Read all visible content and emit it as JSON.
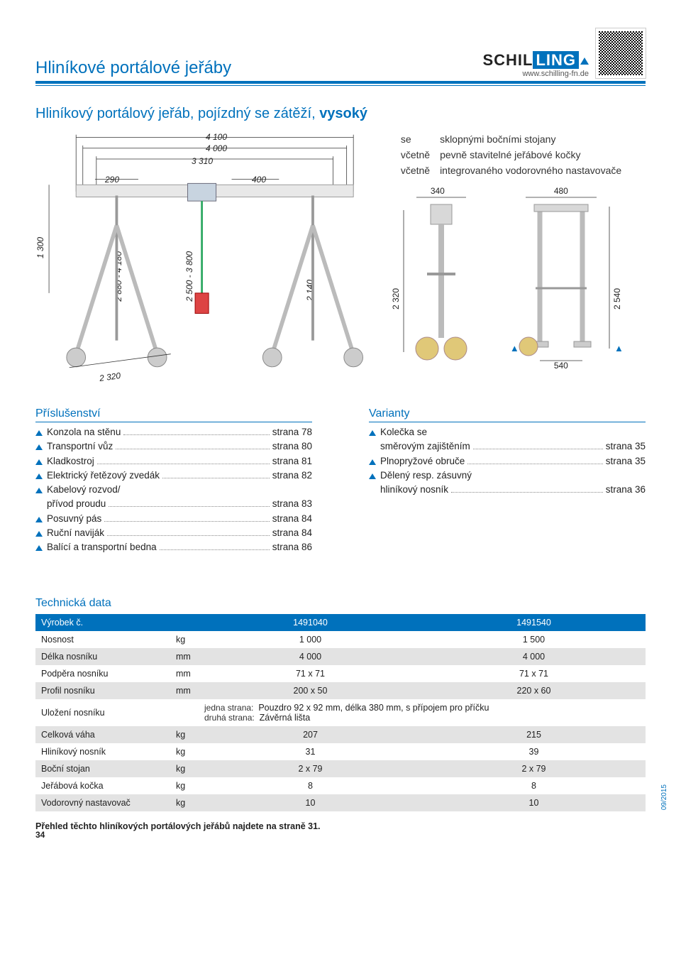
{
  "header": {
    "page_title": "Hliníkové portálové jeřáby",
    "logo_part1": "SCHIL",
    "logo_part2": "LING",
    "url": "www.schilling-fn.de"
  },
  "subtitle_plain": "Hliníkový portálový jeřáb, pojízdný se zátěží, ",
  "subtitle_bold": "vysoký",
  "features": [
    {
      "left": "se",
      "right": "sklopnými bočními stojany"
    },
    {
      "left": "včetně",
      "right": "pevně stavitelné jeřábové kočky"
    },
    {
      "left": "včetně",
      "right": "integrovaného vodorovného nastavovače"
    }
  ],
  "dimensions": {
    "top1": "4 100",
    "top2": "4 000",
    "top3": "3 310",
    "left_h": "1 300",
    "mast1": "2 880 - 4 180",
    "mast2": "2 500 - 3 800",
    "base_w": "290",
    "right_w": "400",
    "clear_h": "2 140",
    "base_diag": "2 320",
    "side_a_w": "340",
    "side_a_h": "2 320",
    "side_b_w": "480",
    "side_b_h": "2 540",
    "side_b_base": "540"
  },
  "accessories_title": "Příslušenství",
  "accessories": [
    {
      "label": "Konzola na stěnu",
      "page": "strana 78"
    },
    {
      "label": "Transportní vůz",
      "page": "strana 80"
    },
    {
      "label": "Kladkostroj",
      "page": "strana 81"
    },
    {
      "label": "Elektrický řetězový zvedák",
      "page": "strana 82",
      "dots": ".."
    },
    {
      "label": "Kabelový rozvod/",
      "cont": "přívod proudu",
      "page": "strana 83"
    },
    {
      "label": "Posuvný pás",
      "page": "strana 84"
    },
    {
      "label": "Ruční naviják",
      "page": "strana 84"
    },
    {
      "label": "Balící a transportní bedna",
      "page": "strana 86",
      "dots": "..."
    }
  ],
  "variants_title": "Varianty",
  "variants": [
    {
      "label": "Kolečka se",
      "cont": "směrovým zajištěním",
      "page": "strana 35"
    },
    {
      "label": "Plnopryžové obruče",
      "page": "strana 35"
    },
    {
      "label": "Dělený resp. zásuvný",
      "cont": "hliníkový nosník",
      "page": "strana 36"
    }
  ],
  "tech_title": "Technická data",
  "tech_header": {
    "c0": "Výrobek č.",
    "c1": "",
    "c2": "1491040",
    "c3": "1491540"
  },
  "tech_rows": [
    {
      "alt": false,
      "label": "Nosnost",
      "unit": "kg",
      "v1": "1 000",
      "v2": "1 500"
    },
    {
      "alt": true,
      "label": "Délka nosníku",
      "unit": "mm",
      "v1": "4 000",
      "v2": "4 000"
    },
    {
      "alt": false,
      "label": "Podpěra nosníku",
      "unit": "mm",
      "v1": "71 x 71",
      "v2": "71 x 71"
    },
    {
      "alt": true,
      "label": "Profil nosníku",
      "unit": "mm",
      "v1": "200 x 50",
      "v2": "220 x 60"
    }
  ],
  "ulozeni_label": "Uložení nosníku",
  "ulozeni_side1_lbl": "jedna strana:",
  "ulozeni_side1_val": "Pouzdro 92 x 92 mm, délka 380 mm, s přípojem pro příčku",
  "ulozeni_side2_lbl": "druhá strana:",
  "ulozeni_side2_val": "Závěrná lišta",
  "tech_rows2": [
    {
      "alt": true,
      "label": "Celková váha",
      "unit": "kg",
      "v1": "207",
      "v2": "215"
    },
    {
      "alt": false,
      "label": "Hliníkový nosník",
      "unit": "kg",
      "v1": "31",
      "v2": "39"
    },
    {
      "alt": true,
      "label": "Boční stojan",
      "unit": "kg",
      "v1": "2 x 79",
      "v2": "2 x 79"
    },
    {
      "alt": false,
      "label": "Jeřábová kočka",
      "unit": "kg",
      "v1": "8",
      "v2": "8"
    },
    {
      "alt": true,
      "label": "Vodorovný nastavovač",
      "unit": "kg",
      "v1": "10",
      "v2": "10"
    }
  ],
  "footer_note": "Přehled těchto hliníkových portálových jeřábů najdete na straně 31.",
  "page_number": "34",
  "date_code": "09/2015",
  "colors": {
    "brand": "#0071bc",
    "alt_row": "#e3e3e3"
  }
}
